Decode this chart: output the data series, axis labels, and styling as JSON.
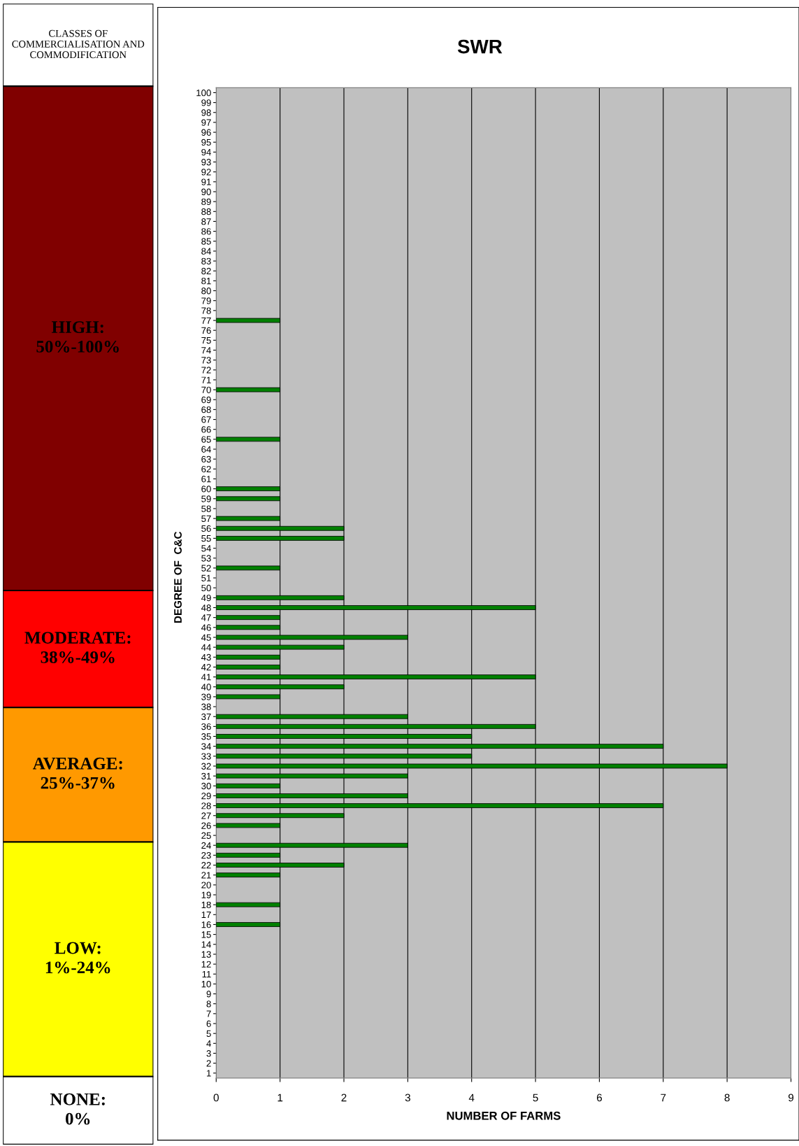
{
  "chart_data": [
    {
      "type": "other",
      "title": "CLASSES OF COMMERCIALISATION AND COMMODIFICATION",
      "categories": [
        "HIGH:\n50%-100%",
        "MODERATE:\n38%-49%",
        "AVERAGE:\n25%-37%",
        "LOW:\n1%-24%",
        "NONE:\n0%"
      ],
      "colors": [
        "#800000",
        "#ff0000",
        "#ff9900",
        "#ffff00",
        "#ffffff"
      ]
    },
    {
      "type": "bar",
      "orientation": "horizontal",
      "title": "SWR",
      "xlabel": "NUMBER OF FARMS",
      "ylabel": "DEGREE OF  C&C",
      "categories": [
        "100",
        "99",
        "98",
        "97",
        "96",
        "95",
        "94",
        "93",
        "92",
        "91",
        "90",
        "89",
        "88",
        "87",
        "86",
        "85",
        "84",
        "83",
        "82",
        "81",
        "80",
        "79",
        "78",
        "77",
        "76",
        "75",
        "74",
        "73",
        "72",
        "71",
        "70",
        "69",
        "68",
        "67",
        "66",
        "65",
        "64",
        "63",
        "62",
        "61",
        "60",
        "59",
        "58",
        "57",
        "56",
        "55",
        "54",
        "53",
        "52",
        "51",
        "50",
        "49",
        "48",
        "47",
        "46",
        "45",
        "44",
        "43",
        "42",
        "41",
        "40",
        "39",
        "38",
        "37",
        "36",
        "35",
        "34",
        "33",
        "32",
        "31",
        "30",
        "29",
        "28",
        "27",
        "26",
        "25",
        "24",
        "23",
        "22",
        "21",
        "20",
        "19",
        "18",
        "17",
        "16",
        "15",
        "14",
        "13",
        "12",
        "11",
        "10",
        "9",
        "8",
        "7",
        "6",
        "5",
        "4",
        "3",
        "2",
        "1"
      ],
      "values": [
        null,
        null,
        null,
        null,
        null,
        null,
        null,
        null,
        null,
        null,
        null,
        null,
        null,
        null,
        null,
        null,
        null,
        null,
        null,
        null,
        null,
        null,
        null,
        1,
        null,
        null,
        null,
        null,
        null,
        null,
        1,
        null,
        null,
        null,
        null,
        1,
        null,
        null,
        null,
        null,
        1,
        1,
        null,
        1,
        2,
        2,
        null,
        null,
        1,
        null,
        null,
        2,
        5,
        1,
        1,
        3,
        2,
        1,
        1,
        5,
        2,
        1,
        null,
        3,
        5,
        4,
        7,
        4,
        8,
        3,
        1,
        3,
        7,
        2,
        1,
        null,
        3,
        1,
        2,
        1,
        null,
        null,
        1,
        null,
        1,
        null,
        null,
        null,
        null,
        null,
        null,
        null,
        null,
        null,
        null,
        null,
        null,
        null,
        null,
        null
      ],
      "color": "#008000",
      "xlim": [
        0,
        9
      ],
      "xticks": [
        0,
        1,
        2,
        3,
        4,
        5,
        6,
        7,
        8,
        9
      ],
      "grid": "x"
    }
  ]
}
